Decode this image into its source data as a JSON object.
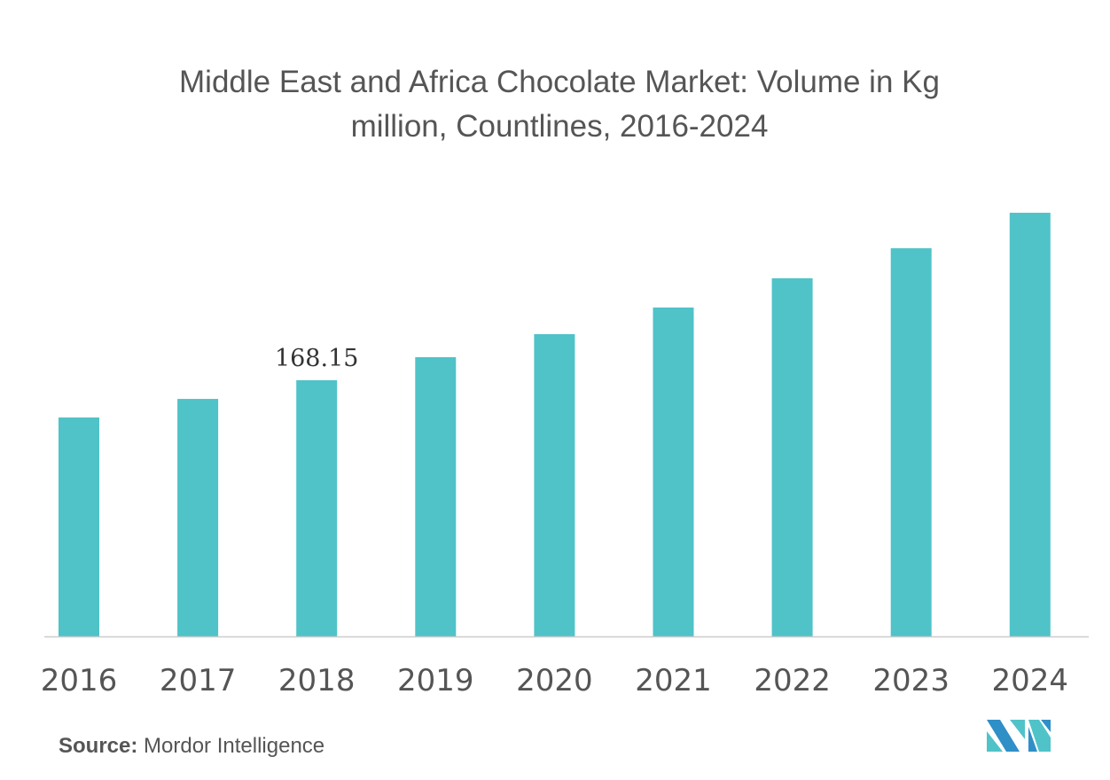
{
  "chart_data": {
    "type": "bar",
    "title": "Middle East and Africa Chocolate Market: Volume in Kg million, Countlines, 2016-2024",
    "title_lines": [
      "Middle East and Africa Chocolate Market: Volume in Kg",
      "million, Countlines, 2016-2024"
    ],
    "categories": [
      "2016",
      "2017",
      "2018",
      "2019",
      "2020",
      "2021",
      "2022",
      "2023",
      "2024"
    ],
    "values": [
      143.7,
      155.9,
      168.15,
      183.3,
      198.4,
      215.9,
      235.1,
      254.8,
      278.1
    ],
    "data_labels": {
      "2018": "168.15"
    },
    "xlabel": "",
    "ylabel": "",
    "ylim": [
      0,
      300
    ],
    "grid": false,
    "bar_color": "#4fc3c8"
  },
  "source": {
    "label": "Source:",
    "text": "Mordor Intelligence"
  },
  "logo": {
    "text": "Mordor Intelligence",
    "colors": [
      "#2f8fc7",
      "#4fc3c8"
    ]
  }
}
